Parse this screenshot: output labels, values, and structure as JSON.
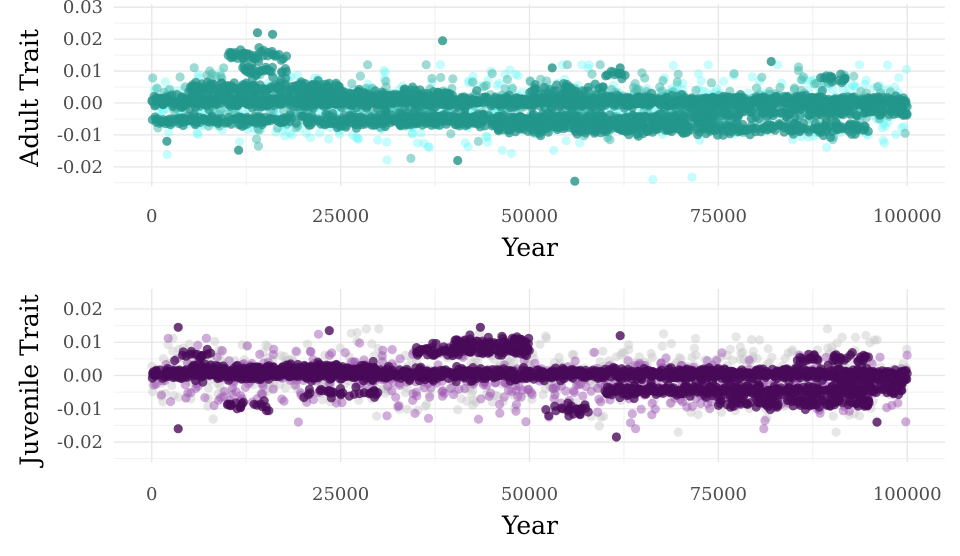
{
  "chart_data": [
    {
      "type": "scatter",
      "title": "",
      "xlabel": "Year",
      "ylabel": "Adult Trait",
      "xlim": [
        -5000,
        105000
      ],
      "ylim": [
        -0.026,
        0.031
      ],
      "x_ticks": [
        0,
        25000,
        50000,
        75000,
        100000
      ],
      "x_tick_labels": [
        "0",
        "25000",
        "50000",
        "75000",
        "100000"
      ],
      "y_ticks": [
        -0.02,
        -0.01,
        0.0,
        0.01,
        0.02,
        0.03
      ],
      "y_tick_labels": [
        "-0.02",
        "-0.01",
        "0.00",
        "0.01",
        "0.02",
        "0.03"
      ],
      "grid": true,
      "colors": {
        "bright": "#5ff5f5",
        "mid": "#4dbdb0",
        "dark": "#22958a"
      },
      "series": [
        {
          "values": [
            [
              2000,
              -0.012
            ],
            [
              11500,
              -0.0148
            ],
            [
              12000,
              0.0155
            ],
            [
              14000,
              0.022
            ],
            [
              16000,
              0.0215
            ],
            [
              38500,
              0.0195
            ],
            [
              40500,
              -0.018
            ],
            [
              53000,
              0.011
            ],
            [
              56000,
              -0.0245
            ],
            [
              62000,
              0.011
            ],
            [
              82000,
              0.013
            ],
            [
              90000,
              0.008
            ]
          ]
        }
      ]
    },
    {
      "type": "scatter",
      "title": "",
      "xlabel": "Year",
      "ylabel": "Juvenile Trait",
      "xlim": [
        -5000,
        105000
      ],
      "ylim": [
        -0.026,
        0.026
      ],
      "x_ticks": [
        0,
        25000,
        50000,
        75000,
        100000
      ],
      "x_tick_labels": [
        "0",
        "25000",
        "50000",
        "75000",
        "100000"
      ],
      "y_ticks": [
        -0.02,
        -0.01,
        0.0,
        0.01,
        0.02
      ],
      "y_tick_labels": [
        "-0.02",
        "-0.01",
        "0.00",
        "0.01",
        "0.02"
      ],
      "grid": true,
      "colors": {
        "light": "#c8c8c8",
        "mid": "#a05ab4",
        "dark": "#4a0a5a"
      },
      "series": [
        {
          "values": [
            [
              3500,
              0.0145
            ],
            [
              3500,
              -0.016
            ],
            [
              23500,
              0.0135
            ],
            [
              43500,
              0.0145
            ],
            [
              61500,
              -0.0185
            ],
            [
              62000,
              0.012
            ],
            [
              96000,
              -0.014
            ]
          ]
        }
      ]
    }
  ]
}
